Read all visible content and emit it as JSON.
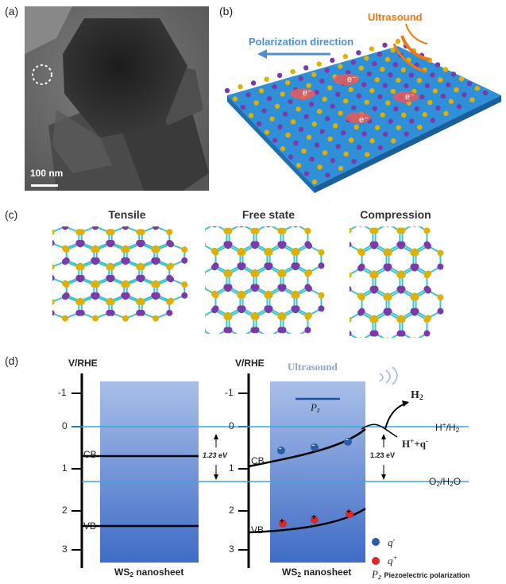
{
  "panel_labels": [
    "(a)",
    "(b)",
    "(c)",
    "(d)"
  ],
  "panel_a": {
    "scale_bar": "100 nm"
  },
  "panel_b": {
    "ultrasound": "Ultrasound",
    "polarization": "Polarization direction",
    "electron": "e⁻"
  },
  "panel_c": {
    "titles": [
      "Tensile",
      "Free state",
      "Compression"
    ]
  },
  "panel_d": {
    "axis_title": "V/RHE",
    "ticks": [
      "-1",
      "0",
      "1",
      "2",
      "3"
    ],
    "cb": "CB",
    "vb": "VB",
    "gap": "1.23 eV",
    "ultrasound": "Ultrasound",
    "pz": "P",
    "pz_sub": "z",
    "h2": "H",
    "h2_sub": "2",
    "redox1_left": "H",
    "redox1_sup": "+",
    "redox1_right": "/H",
    "redox1_sub": "2",
    "redox2_left": "O",
    "redox2_sub": "2",
    "redox2_right": "/H",
    "redox2_sub2": "2",
    "redox2_tail": "O",
    "reaction_left": "H",
    "reaction_sup": "+",
    "reaction_mid": "+q",
    "reaction_sup2": "-",
    "nanosheet": "WS",
    "nanosheet_sub": "2",
    "nanosheet_tail": " nanosheet",
    "legend_q_minus": "q",
    "legend_q_minus_sup": "-",
    "legend_q_plus": "q",
    "legend_q_plus_sup": "+",
    "legend_pz": "Piezoelectric polarization",
    "minus_sign": "-",
    "plus_sign": "+"
  },
  "colors": {
    "band": "#4a78c8",
    "sulfur": "#e0b000",
    "tungsten": "#7a3aa8",
    "bond": "#3fc4c8",
    "level_line": "#3aa6e0",
    "ultrasound": "#f07a10",
    "polarization": "#4f8fd0"
  }
}
